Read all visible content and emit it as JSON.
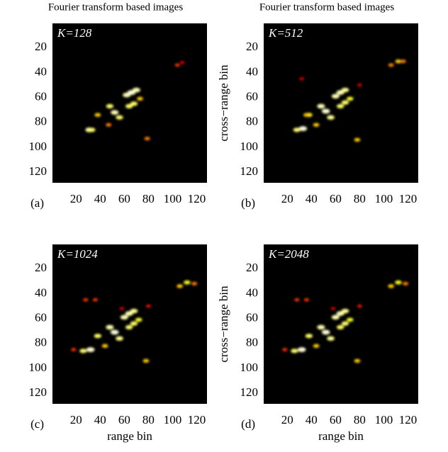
{
  "chart_data": [
    {
      "type": "heatmap",
      "title": "Fourier transform based images",
      "annotation": "K=128",
      "panel_label": "(a)",
      "colormap": "hot",
      "xlim": [
        0.5,
        128.5
      ],
      "ylim": [
        128.5,
        0.5
      ],
      "xticks": [
        20,
        40,
        60,
        80,
        100,
        120
      ],
      "yticks": [
        20,
        40,
        60,
        80,
        100,
        120
      ],
      "spots": {
        "x": [
          31,
          33,
          38,
          47,
          48,
          52,
          56,
          62,
          66,
          70,
          64,
          68,
          73,
          79,
          104,
          108
        ],
        "y": [
          86,
          86,
          74,
          82,
          67,
          72,
          76,
          58,
          56,
          54,
          67,
          65,
          61,
          93,
          34,
          32
        ],
        "values": [
          0.9,
          0.8,
          0.6,
          0.5,
          0.8,
          0.9,
          0.8,
          0.9,
          0.95,
          0.9,
          0.8,
          0.8,
          0.6,
          0.5,
          0.4,
          0.3
        ]
      }
    },
    {
      "type": "heatmap",
      "title": "Fourier transform based images",
      "annotation": "K=512",
      "panel_label": "(b)",
      "ylabel": "cross−range bin",
      "colormap": "hot",
      "xlim": [
        0.5,
        128.5
      ],
      "ylim": [
        128.5,
        0.5
      ],
      "xticks": [
        20,
        40,
        60,
        80,
        100,
        120
      ],
      "yticks": [
        20,
        40,
        60,
        80,
        100,
        120
      ],
      "spots": {
        "x": [
          28,
          33,
          38,
          36,
          44,
          48,
          52,
          56,
          60,
          64,
          68,
          64,
          68,
          72,
          78,
          106,
          112,
          116,
          32,
          80
        ],
        "y": [
          86,
          85,
          74,
          74,
          82,
          67,
          71,
          76,
          59,
          56,
          54,
          67,
          64,
          61,
          94,
          34,
          31,
          31,
          45,
          50
        ],
        "values": [
          0.8,
          0.95,
          0.7,
          0.6,
          0.6,
          0.9,
          0.95,
          0.85,
          0.9,
          0.9,
          0.85,
          0.8,
          0.8,
          0.7,
          0.6,
          0.5,
          0.6,
          0.5,
          0.3,
          0.3
        ]
      }
    },
    {
      "type": "heatmap",
      "annotation": "K=1024",
      "panel_label": "(c)",
      "xlabel": "range bin",
      "colormap": "hot",
      "xlim": [
        0.5,
        128.5
      ],
      "ylim": [
        128.5,
        0.5
      ],
      "xticks": [
        20,
        40,
        60,
        80,
        100,
        120
      ],
      "yticks": [
        20,
        40,
        60,
        80,
        100,
        120
      ],
      "spots": {
        "x": [
          18,
          26,
          32,
          38,
          44,
          48,
          52,
          56,
          60,
          64,
          68,
          64,
          68,
          72,
          78,
          106,
          112,
          118,
          28,
          36,
          80,
          58
        ],
        "y": [
          85,
          86,
          85,
          74,
          82,
          67,
          71,
          76,
          59,
          56,
          54,
          67,
          64,
          61,
          94,
          34,
          31,
          32,
          45,
          45,
          50,
          52
        ],
        "values": [
          0.4,
          0.8,
          0.95,
          0.8,
          0.6,
          0.9,
          0.95,
          0.85,
          0.9,
          0.9,
          0.85,
          0.8,
          0.8,
          0.7,
          0.6,
          0.6,
          0.7,
          0.5,
          0.4,
          0.4,
          0.35,
          0.3
        ]
      }
    },
    {
      "type": "heatmap",
      "annotation": "K=2048",
      "panel_label": "(d)",
      "ylabel": "cross−range bin",
      "xlabel": "range bin",
      "colormap": "hot",
      "xlim": [
        0.5,
        128.5
      ],
      "ylim": [
        128.5,
        0.5
      ],
      "xticks": [
        20,
        40,
        60,
        80,
        100,
        120
      ],
      "yticks": [
        20,
        40,
        60,
        80,
        100,
        120
      ],
      "spots": {
        "x": [
          18,
          26,
          32,
          38,
          44,
          48,
          52,
          56,
          60,
          64,
          68,
          64,
          68,
          72,
          78,
          106,
          112,
          118,
          28,
          36,
          80,
          58
        ],
        "y": [
          85,
          86,
          85,
          74,
          82,
          67,
          71,
          76,
          59,
          56,
          54,
          67,
          64,
          61,
          94,
          34,
          31,
          32,
          45,
          45,
          50,
          52
        ],
        "values": [
          0.4,
          0.8,
          0.95,
          0.8,
          0.6,
          0.9,
          0.95,
          0.85,
          0.9,
          0.9,
          0.85,
          0.8,
          0.8,
          0.7,
          0.6,
          0.6,
          0.7,
          0.5,
          0.4,
          0.4,
          0.35,
          0.3
        ]
      }
    }
  ]
}
